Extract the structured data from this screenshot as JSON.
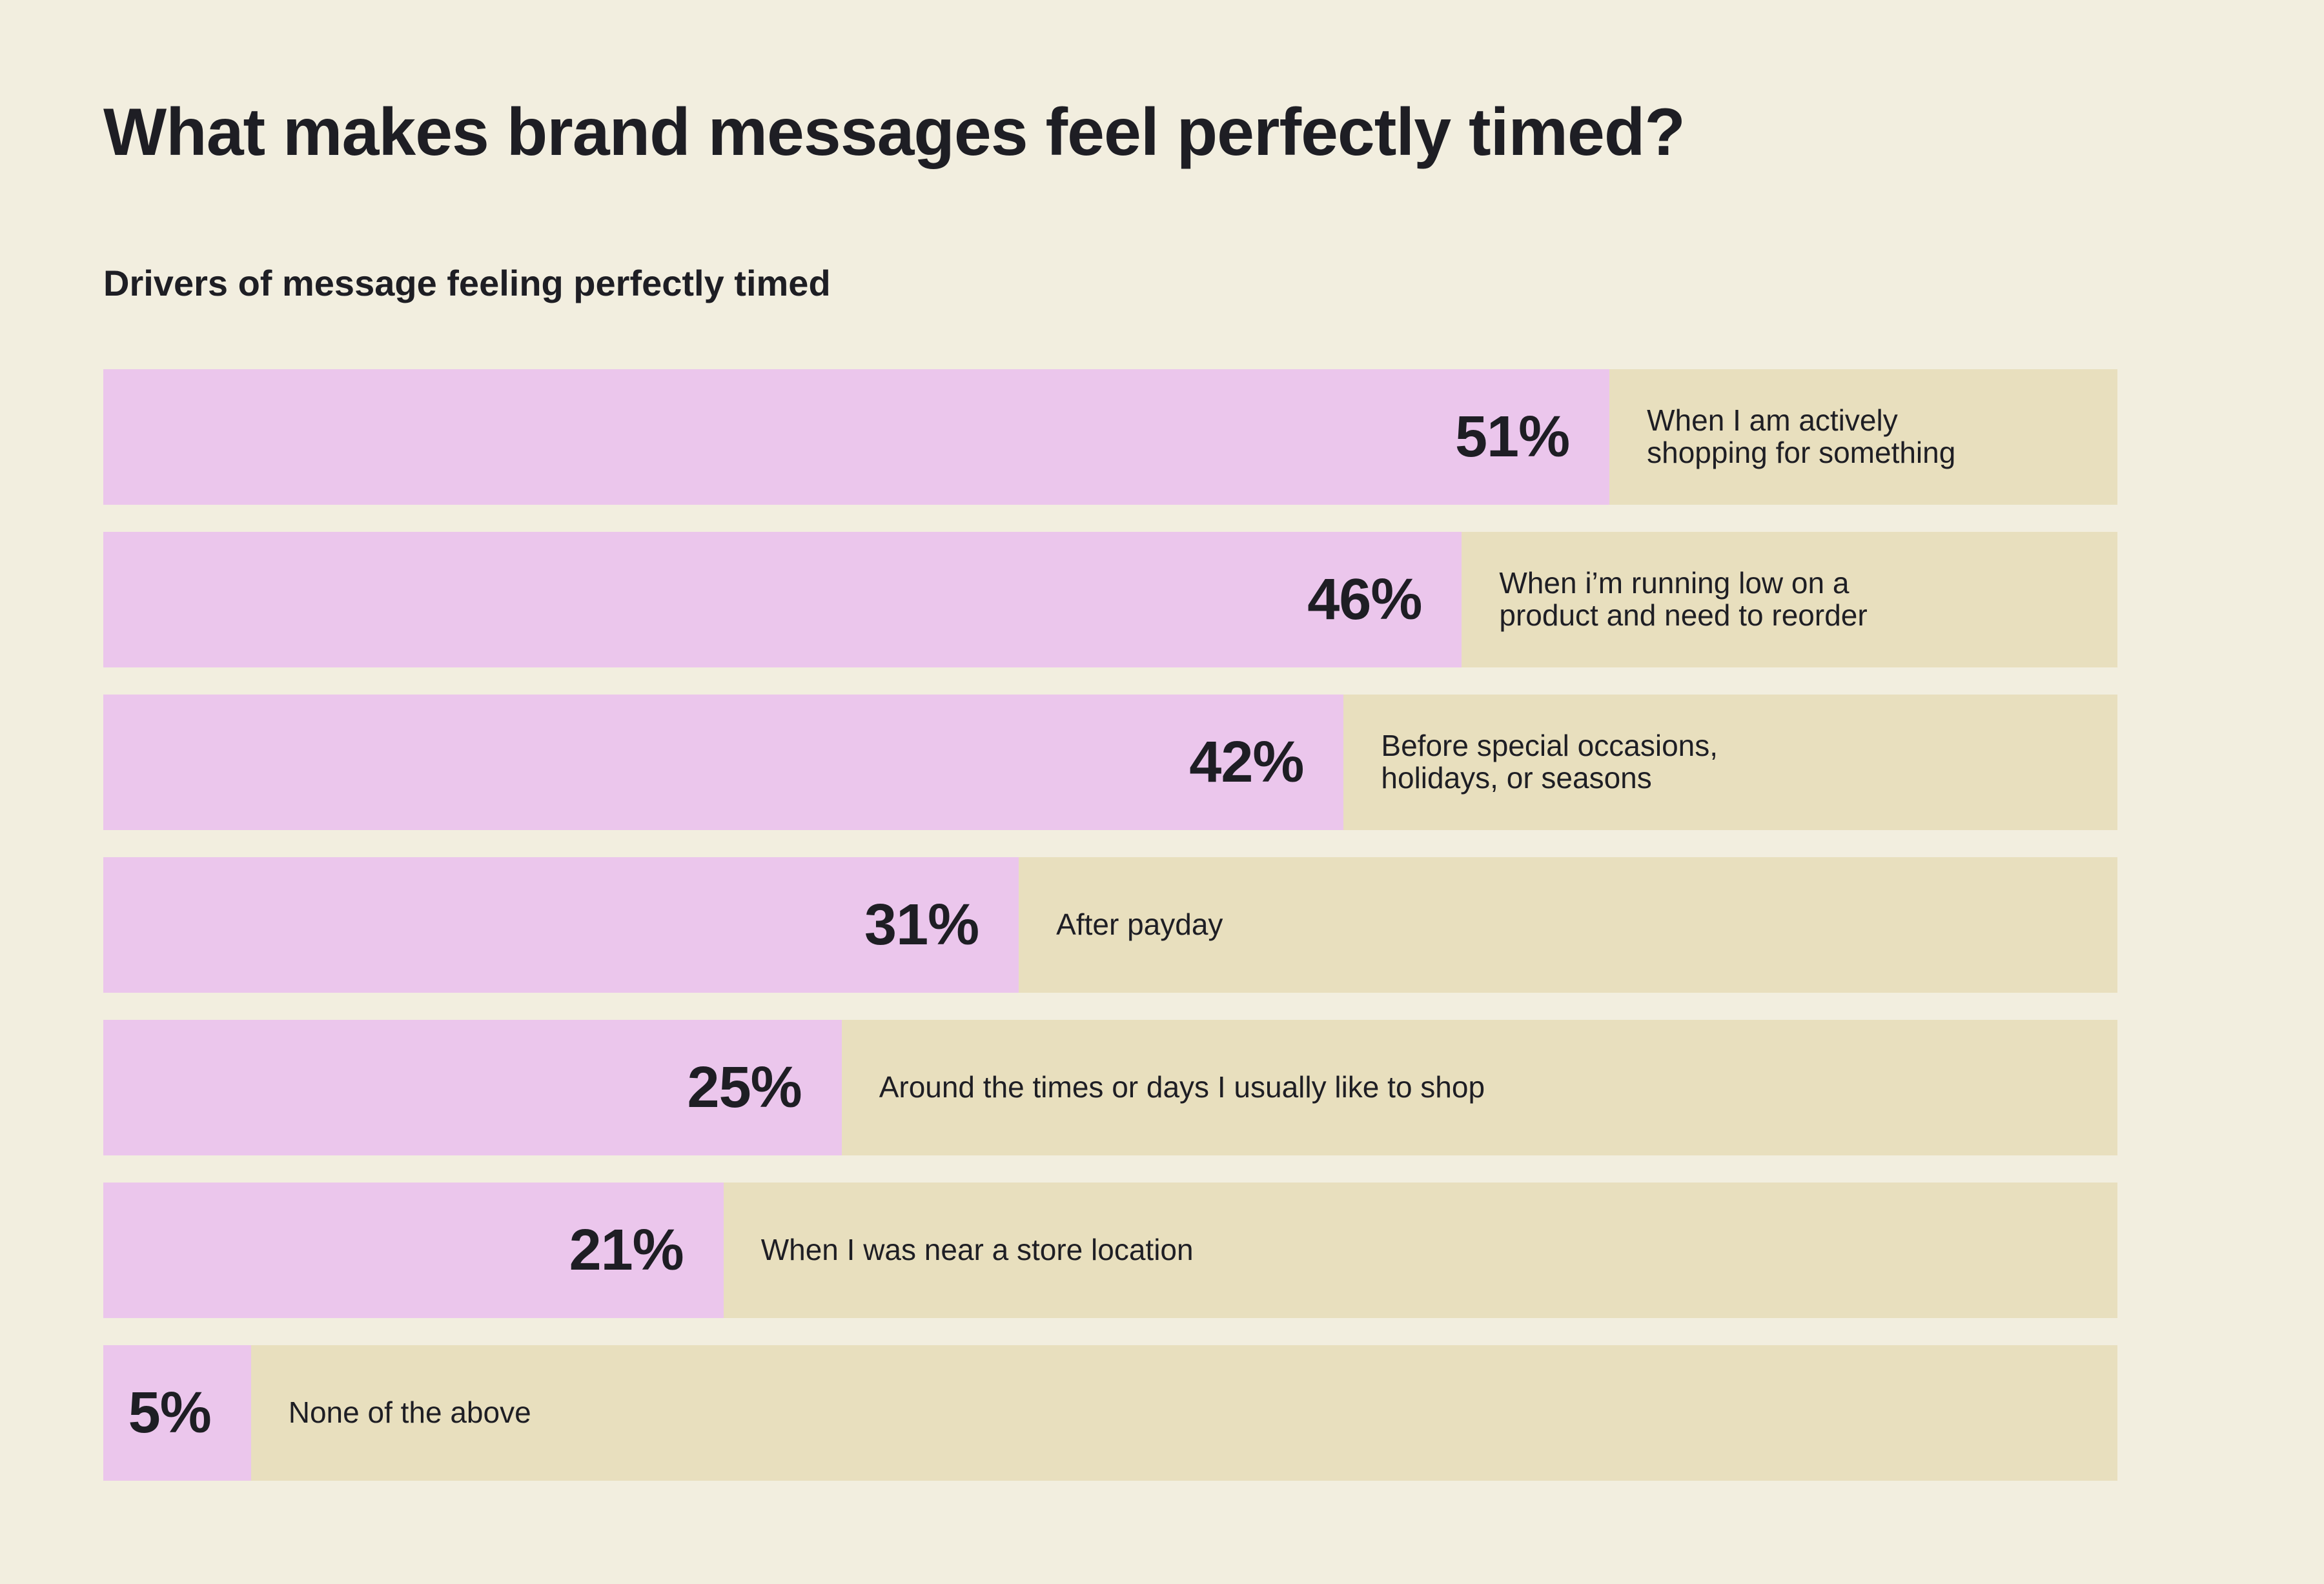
{
  "chart_data": {
    "type": "bar",
    "orientation": "horizontal",
    "title": "What makes brand messages feel perfectly timed?",
    "subtitle": "Drivers of message feeling perfectly timed",
    "xlim": [
      0,
      68.2
    ],
    "categories": [
      "When I am actively\nshopping for something",
      "When i’m running low on a\nproduct and need to reorder",
      "Before special occasions,\nholidays, or seasons",
      "After payday",
      "Around the times or days I usually like to shop",
      "When I was near a store location",
      "None of the above"
    ],
    "values": [
      51,
      46,
      42,
      31,
      25,
      21,
      5
    ],
    "value_labels": [
      "51%",
      "46%",
      "42%",
      "31%",
      "25%",
      "21%",
      "5%"
    ],
    "colors": {
      "bar": "#ebc6ec",
      "track": "#e8dfbe",
      "background": "#f2eedf"
    }
  }
}
